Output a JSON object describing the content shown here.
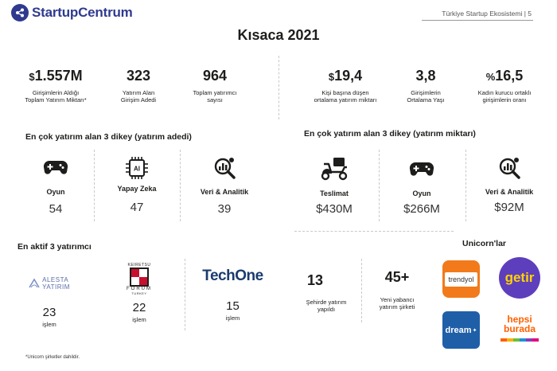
{
  "header": {
    "logo_text": "StartupCentrum",
    "right_text": "Türkiye Startup Ekosistemi | 5",
    "title": "Kısaca 2021"
  },
  "stats_left": [
    {
      "prefix": "$",
      "value": "1.557M",
      "label": "Girişimlerin Aldığı\nToplam Yatırım Miktarı*"
    },
    {
      "prefix": "",
      "value": "323",
      "label": "Yatırım Alan\nGirişim Adedi"
    },
    {
      "prefix": "",
      "value": "964",
      "label": "Toplam yatırımcı\nsayısı"
    }
  ],
  "stats_right": [
    {
      "prefix": "$",
      "value": "19,4",
      "label": "Kişi başına düşen\nortalama yatırım miktarı"
    },
    {
      "prefix": "",
      "value": "3,8",
      "label": "Girişimlerin\nOrtalama Yaşı"
    },
    {
      "prefix": "%",
      "value": "16,5",
      "label": "Kadın kurucu ortaklı\ngirişimlerin oranı"
    }
  ],
  "verticals_count": {
    "title": "En çok yatırım alan 3 dikey (yatırım adedi)",
    "items": [
      {
        "icon": "gamepad-icon",
        "label": "Oyun",
        "value": "54"
      },
      {
        "icon": "ai-chip-icon",
        "label": "Yapay Zeka",
        "value": "47"
      },
      {
        "icon": "data-analytics-icon",
        "label": "Veri & Analitik",
        "value": "39"
      }
    ]
  },
  "verticals_amount": {
    "title": "En çok yatırım alan 3 dikey (yatırım miktarı)",
    "items": [
      {
        "icon": "delivery-scooter-icon",
        "label": "Teslimat",
        "value": "$430M"
      },
      {
        "icon": "gamepad-icon",
        "label": "Oyun",
        "value": "$266M"
      },
      {
        "icon": "data-analytics-icon",
        "label": "Veri & Analitik",
        "value": "$92M"
      }
    ]
  },
  "investors": {
    "title": "En aktif 3 yatırımcı",
    "items": [
      {
        "logo_line1": "ALESTA",
        "logo_line2": "YATIRIM",
        "value": "23",
        "unit": "işlem"
      },
      {
        "logo_top": "KEIRETSU",
        "logo_line1": "FORUM",
        "logo_line2": "TURKEY",
        "value": "22",
        "unit": "işlem"
      },
      {
        "logo_line1": "TechOne",
        "value": "15",
        "unit": "işlem"
      }
    ]
  },
  "extra_stats": [
    {
      "value": "13",
      "label": "Şehirde yatırım\nyapıldı"
    },
    {
      "value": "45+",
      "label": "Yeni yabancı\nyatırım şirketi"
    }
  ],
  "unicorns": {
    "title": "Unicorn'lar",
    "items": [
      {
        "name": "trendyol",
        "bg": "#f27a1a"
      },
      {
        "name": "getir",
        "bg": "#5d3ebc"
      },
      {
        "name": "dream",
        "bg": "#1f5fa8"
      },
      {
        "name_line1": "hepsi",
        "name_line2": "burada",
        "bg": "#ffffff",
        "color": "#ff6000"
      }
    ]
  },
  "footnote": "*Unicorn şirketler dahildir.",
  "colors": {
    "brand": "#2f3a8f",
    "text": "#1d1d1b"
  }
}
